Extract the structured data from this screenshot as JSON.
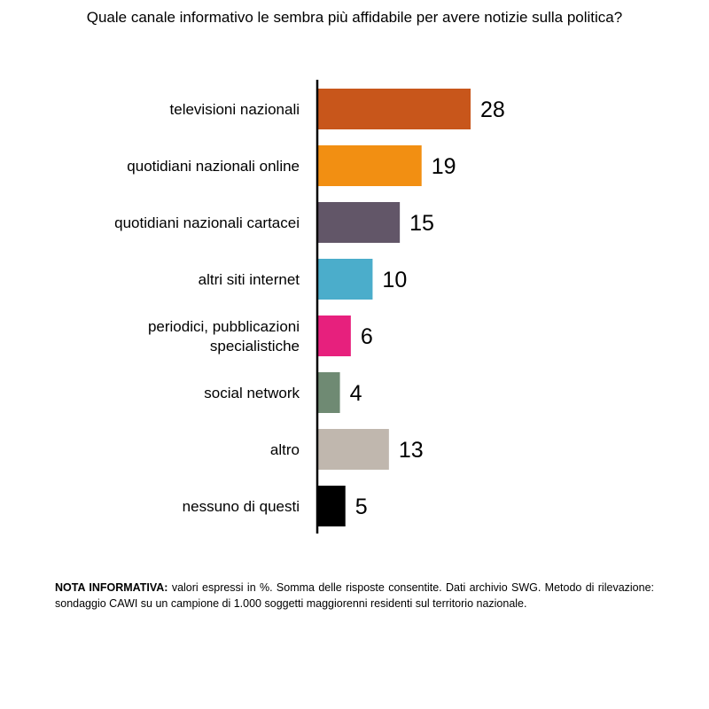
{
  "title": "Quale canale informativo le sembra più affidabile per avere notizie sulla politica?",
  "chart_data": {
    "type": "bar",
    "orientation": "horizontal",
    "categories": [
      [
        "televisioni nazionali"
      ],
      [
        "quotidiani nazionali online"
      ],
      [
        "quotidiani nazionali cartacei"
      ],
      [
        "altri siti internet"
      ],
      [
        "periodici, pubblicazioni",
        "specialistiche"
      ],
      [
        "social network"
      ],
      [
        "altro"
      ],
      [
        "nessuno di questi"
      ]
    ],
    "values": [
      28,
      19,
      15,
      10,
      6,
      4,
      13,
      5
    ],
    "colors": [
      "#C8561B",
      "#F28F12",
      "#625668",
      "#4BADCB",
      "#E7207D",
      "#6F8A73",
      "#C0B7AE",
      "#000000"
    ],
    "axis_color": "#000000",
    "xlabel": "",
    "ylabel": "",
    "xlim": [
      0,
      28
    ],
    "grid": false,
    "legend": "none"
  },
  "note": {
    "label": "NOTA INFORMATIVA:",
    "text": " valori espressi in %. Somma delle risposte consentite. Dati archivio SWG. Metodo di rilevazione: sondaggio CAWI su un campione di 1.000 soggetti maggiorenni residenti sul territorio nazionale."
  }
}
